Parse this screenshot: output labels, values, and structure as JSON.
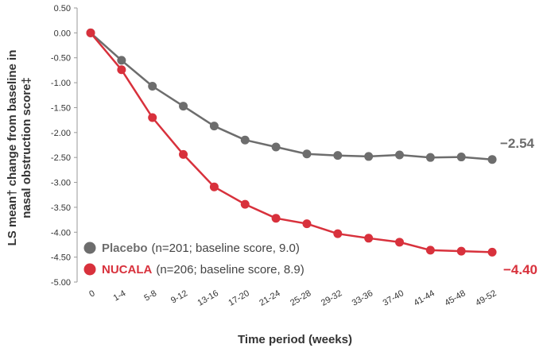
{
  "chart_data": {
    "type": "line",
    "xlabel": "Time period (weeks)",
    "ylabel": "LS mean† change from baseline in nasal obstruction score‡",
    "ylabel_lines": [
      "LS mean† change from baseline in",
      "nasal obstruction score‡"
    ],
    "ylim": [
      -5.0,
      0.5
    ],
    "yticks": [
      0.5,
      0.0,
      -0.5,
      -1.0,
      -1.5,
      -2.0,
      -2.5,
      -3.0,
      -3.5,
      -4.0,
      -4.5,
      -5.0
    ],
    "ytick_labels": [
      "0.50",
      "0.00",
      "-0.50",
      "-1.00",
      "-1.50",
      "-2.00",
      "-2.50",
      "-3.00",
      "-3.50",
      "-4.00",
      "-4.50",
      "-5.00"
    ],
    "categories": [
      "0",
      "1-4",
      "5-8",
      "9-12",
      "13-16",
      "17-20",
      "21-24",
      "25-28",
      "29-32",
      "33-36",
      "37-40",
      "41-44",
      "45-48",
      "49-52"
    ],
    "series": [
      {
        "name": "Placebo",
        "legend_detail": "(n=201; baseline score, 9.0)",
        "color": "#6d6d6d",
        "values": [
          0.0,
          -0.55,
          -1.07,
          -1.47,
          -1.87,
          -2.15,
          -2.29,
          -2.43,
          -2.46,
          -2.48,
          -2.45,
          -2.5,
          -2.49,
          -2.54
        ],
        "end_label": "−2.54"
      },
      {
        "name": "NUCALA",
        "legend_detail": "(n=206; baseline score, 8.9)",
        "color": "#d8313c",
        "values": [
          0.0,
          -0.74,
          -1.7,
          -2.44,
          -3.09,
          -3.44,
          -3.72,
          -3.83,
          -4.03,
          -4.12,
          -4.2,
          -4.36,
          -4.38,
          -4.4
        ],
        "end_label": "−4.40"
      }
    ],
    "grid": false,
    "legend_position": "bottom-left"
  }
}
